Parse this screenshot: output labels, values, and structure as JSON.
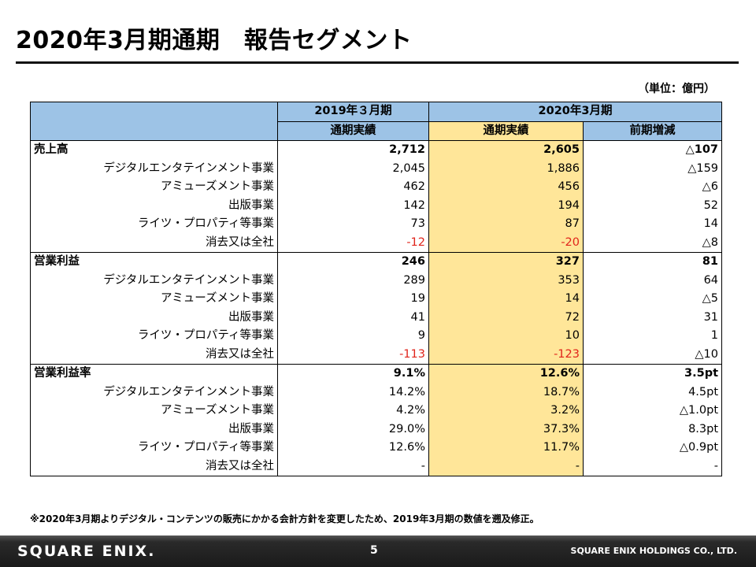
{
  "title": "2020年3月期通期　報告セグメント",
  "unit": "（単位：億円）",
  "table": {
    "header_row1": {
      "col1": "2019年３月期",
      "col2": "2020年3月期"
    },
    "header_row2": {
      "col1": "通期実績",
      "col2": "通期実績",
      "col3": "前期増減"
    },
    "sections": [
      {
        "label": "売上高",
        "v2019": "2,712",
        "v2020": "2,605",
        "diff": "△107",
        "rows": [
          {
            "label": "デジタルエンタテインメント事業",
            "v2019": "2,045",
            "v2020": "1,886",
            "diff": "△159"
          },
          {
            "label": "アミューズメント事業",
            "v2019": "462",
            "v2020": "456",
            "diff": "△6"
          },
          {
            "label": "出版事業",
            "v2019": "142",
            "v2020": "194",
            "diff": "52"
          },
          {
            "label": "ライツ・プロパティ等事業",
            "v2019": "73",
            "v2020": "87",
            "diff": "14"
          },
          {
            "label": "消去又は全社",
            "v2019": "-12",
            "v2020": "-20",
            "diff": "△8"
          }
        ]
      },
      {
        "label": "営業利益",
        "v2019": "246",
        "v2020": "327",
        "diff": "81",
        "rows": [
          {
            "label": "デジタルエンタテインメント事業",
            "v2019": "289",
            "v2020": "353",
            "diff": "64"
          },
          {
            "label": "アミューズメント事業",
            "v2019": "19",
            "v2020": "14",
            "diff": "△5"
          },
          {
            "label": "出版事業",
            "v2019": "41",
            "v2020": "72",
            "diff": "31"
          },
          {
            "label": "ライツ・プロパティ等事業",
            "v2019": "9",
            "v2020": "10",
            "diff": "1"
          },
          {
            "label": "消去又は全社",
            "v2019": "-113",
            "v2020": "-123",
            "diff": "△10"
          }
        ]
      },
      {
        "label": "営業利益率",
        "v2019": "9.1%",
        "v2020": "12.6%",
        "diff": "3.5pt",
        "rows": [
          {
            "label": "デジタルエンタテインメント事業",
            "v2019": "14.2%",
            "v2020": "18.7%",
            "diff": "4.5pt"
          },
          {
            "label": "アミューズメント事業",
            "v2019": "4.2%",
            "v2020": "3.2%",
            "diff": "△1.0pt"
          },
          {
            "label": "出版事業",
            "v2019": "29.0%",
            "v2020": "37.3%",
            "diff": "8.3pt"
          },
          {
            "label": "ライツ・プロパティ等事業",
            "v2019": "12.6%",
            "v2020": "11.7%",
            "diff": "△0.9pt"
          },
          {
            "label": "消去又は全社",
            "v2019": "-",
            "v2020": "-",
            "diff": "-"
          }
        ]
      }
    ]
  },
  "footnote": "※2020年3月期よりデジタル・コンテンツの販売にかかる会計方針を変更したため、2019年3月期の数値を遡及修正。",
  "footer": {
    "logo": "SQUARE ENIX.",
    "page": "5",
    "company": "SQUARE ENIX HOLDINGS CO., LTD."
  },
  "colors": {
    "header_blue": "#9dc3e6",
    "highlight_yellow": "#ffe699",
    "negative_red": "#e0241b"
  }
}
